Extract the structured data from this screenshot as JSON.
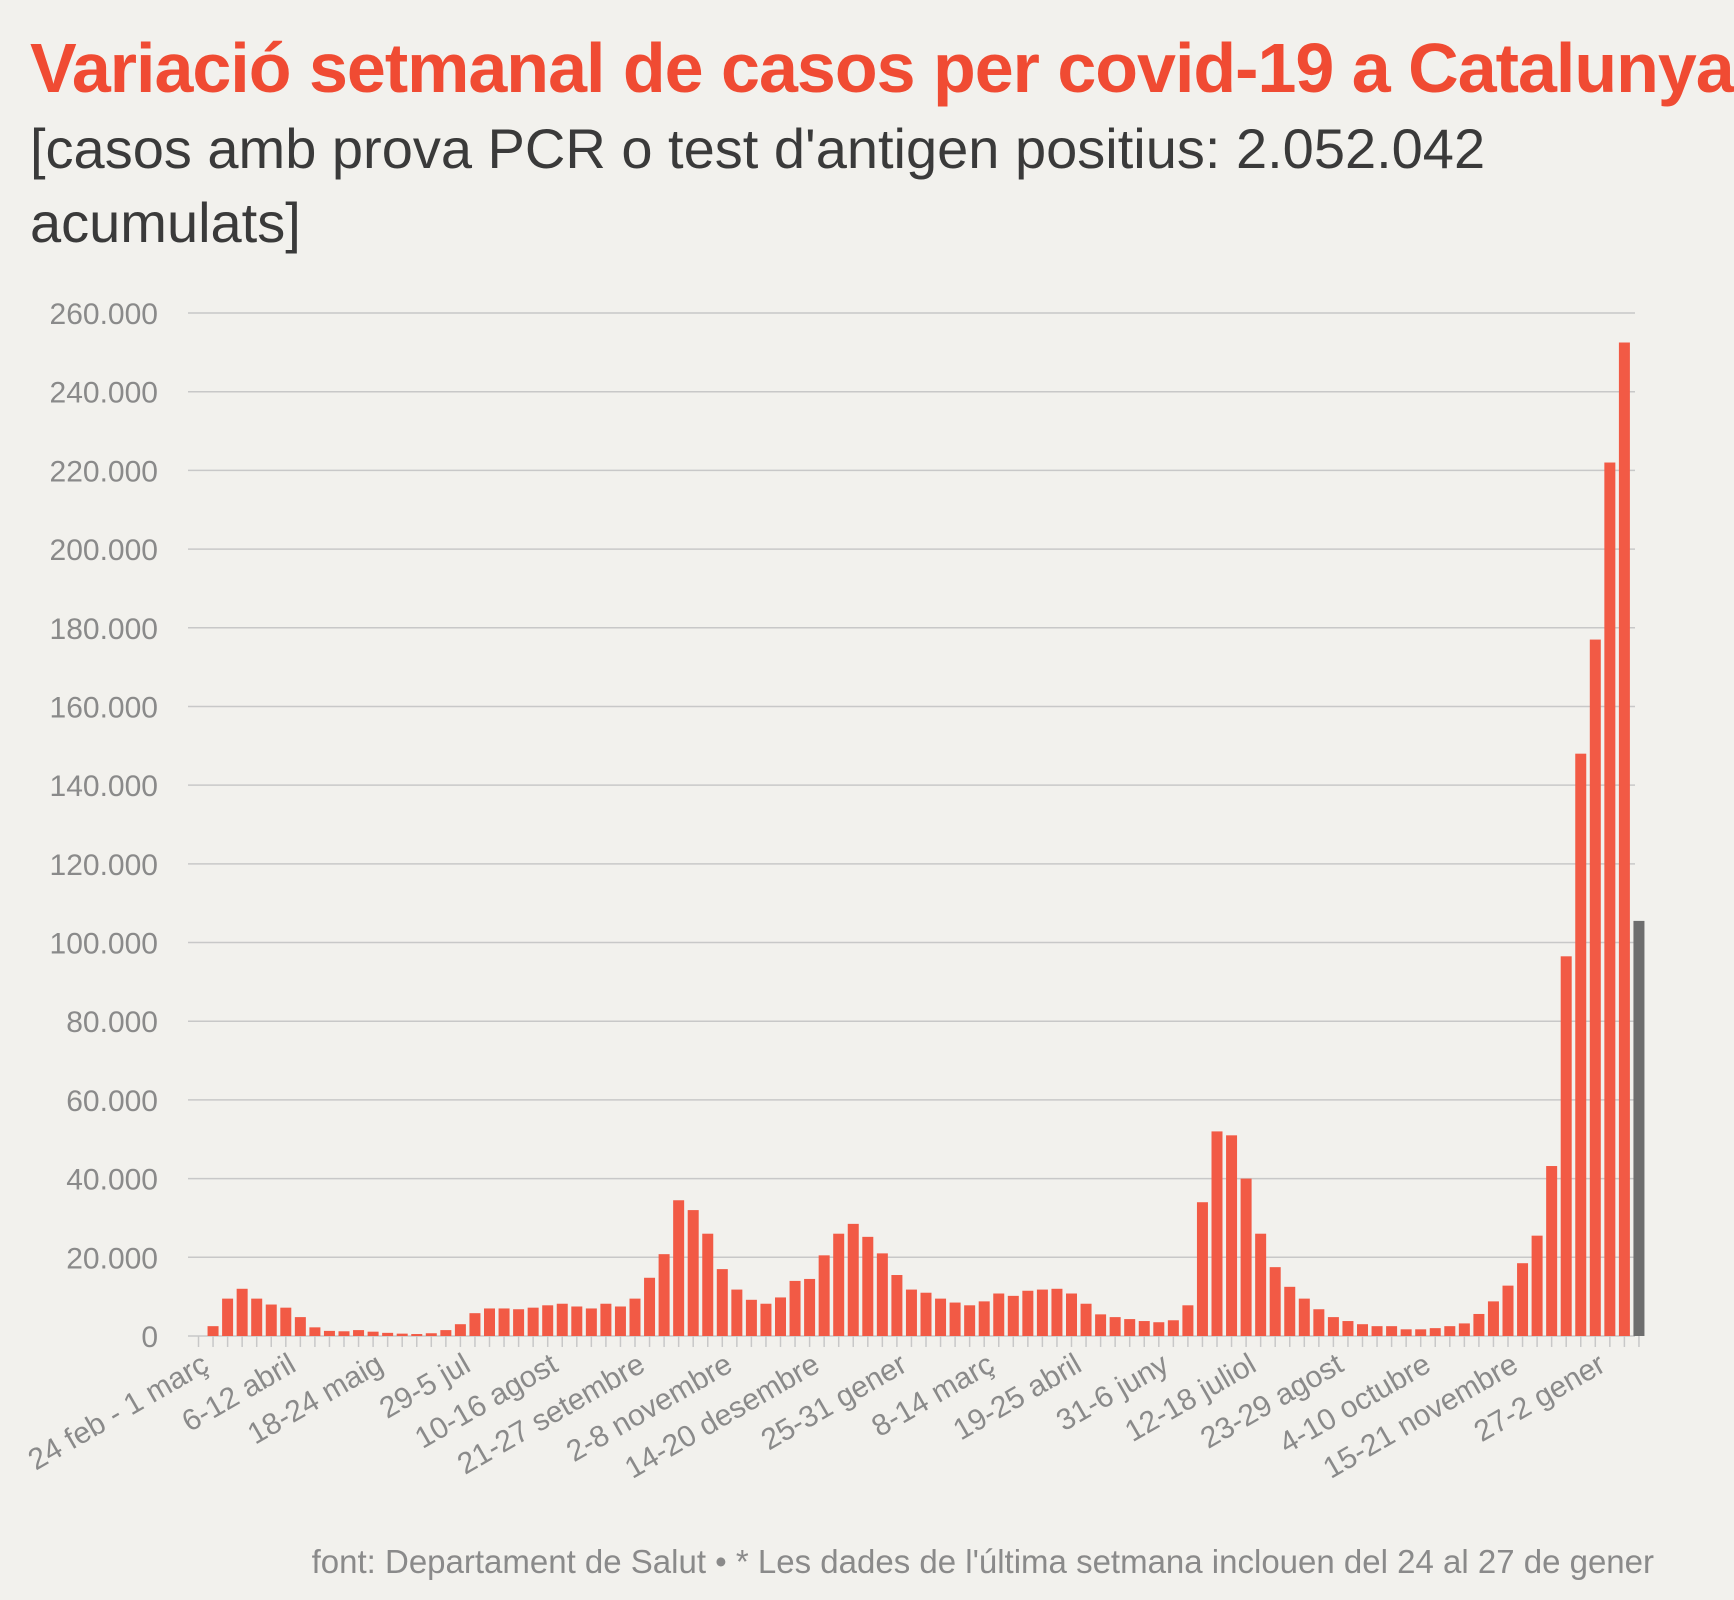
{
  "title": "Variació setmanal de casos per covid-19 a Catalunya",
  "subtitle": "[casos amb prova PCR o test d'antigen positius: 2.052.042 acumulats]",
  "source": "font: Departament de Salut • * Les dades de l'última setmana inclouen del 24 al 27 de gener",
  "colors": {
    "bar": "#f25a45",
    "last_bar": "#6e6e6e",
    "grid": "#c8c8c8",
    "title": "#f04b33"
  },
  "chart_data": {
    "type": "bar",
    "ylim": [
      0,
      260000
    ],
    "yticks": [
      0,
      20000,
      40000,
      60000,
      80000,
      100000,
      120000,
      140000,
      160000,
      180000,
      200000,
      220000,
      240000,
      260000
    ],
    "ytick_labels": [
      "0",
      "20.000",
      "40.000",
      "60.000",
      "80.000",
      "100.000",
      "120.000",
      "140.000",
      "160.000",
      "180.000",
      "200.000",
      "220.000",
      "240.000",
      "260.000"
    ],
    "grid": true,
    "x_labels": [
      {
        "index": 0,
        "label": "24 feb - 1 març"
      },
      {
        "index": 6,
        "label": "6-12 abril"
      },
      {
        "index": 12,
        "label": "18-24 maig"
      },
      {
        "index": 18,
        "label": "29-5 jul"
      },
      {
        "index": 24,
        "label": "10-16 agost"
      },
      {
        "index": 30,
        "label": "21-27 setembre"
      },
      {
        "index": 36,
        "label": "2-8 novembre"
      },
      {
        "index": 42,
        "label": "14-20 desembre"
      },
      {
        "index": 48,
        "label": "25-31 gener"
      },
      {
        "index": 54,
        "label": "8-14 març"
      },
      {
        "index": 60,
        "label": "19-25 abril"
      },
      {
        "index": 66,
        "label": "31-6 juny"
      },
      {
        "index": 72,
        "label": "12-18 juliol"
      },
      {
        "index": 78,
        "label": "23-29 agost"
      },
      {
        "index": 84,
        "label": "4-10 octubre"
      },
      {
        "index": 90,
        "label": "15-21 novembre"
      },
      {
        "index": 96,
        "label": "27-2 gener"
      }
    ],
    "values": [
      0,
      2500,
      9500,
      12000,
      9500,
      8000,
      7200,
      4800,
      2200,
      1300,
      1200,
      1500,
      1100,
      800,
      600,
      500,
      700,
      1500,
      3000,
      5800,
      7000,
      7000,
      6800,
      7200,
      7800,
      8200,
      7500,
      7000,
      8200,
      7500,
      9500,
      14800,
      20800,
      34500,
      32000,
      26000,
      17000,
      11800,
      9200,
      8200,
      9800,
      14000,
      14500,
      20500,
      26000,
      28500,
      25200,
      21000,
      15500,
      11800,
      11000,
      9500,
      8500,
      7800,
      8800,
      10800,
      10200,
      11500,
      11800,
      12000,
      10800,
      8200,
      5500,
      4800,
      4300,
      3800,
      3500,
      4000,
      7800,
      34000,
      52000,
      51000,
      40000,
      26000,
      17500,
      12500,
      9500,
      6800,
      4800,
      3800,
      3000,
      2500,
      2500,
      1700,
      1700,
      2000,
      2500,
      3200,
      5600,
      8800,
      12800,
      18500,
      25500,
      43200,
      96500,
      148000,
      177000,
      222000,
      252500,
      105500
    ],
    "highlight_last": true
  }
}
